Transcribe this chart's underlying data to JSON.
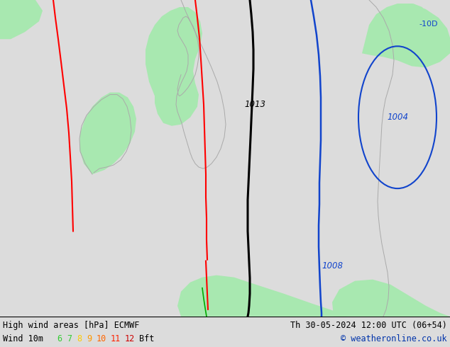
{
  "title_left": "High wind areas [hPa] ECMWF",
  "title_right": "Th 30-05-2024 12:00 UTC (06+54)",
  "subtitle_left": "Wind 10m",
  "copyright": "© weatheronline.co.uk",
  "bg_color": "#dcdcdc",
  "figsize": [
    6.34,
    4.9
  ],
  "dpi": 100,
  "legend_nums": [
    "6",
    "7",
    "8",
    "9",
    "10",
    "11",
    "12"
  ],
  "legend_colors": [
    "#33cc33",
    "#33cc33",
    "#ffcc00",
    "#ff9900",
    "#ff6600",
    "#ff2200",
    "#cc0000"
  ]
}
